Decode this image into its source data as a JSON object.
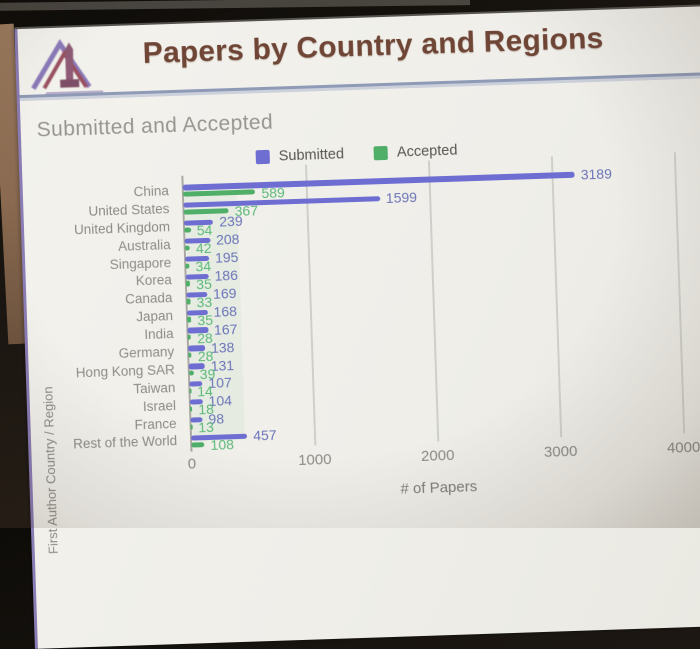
{
  "slide": {
    "title": "Papers by Country and Regions",
    "subtitle": "Submitted and Accepted"
  },
  "colors": {
    "title_text": "#6f4536",
    "header_rule": "#8f9ab6",
    "slide_background": "#efeee9",
    "submitted_bar": "#6e6ed2",
    "accepted_bar": "#4fae68"
  },
  "chart_data": {
    "type": "bar",
    "orientation": "horizontal",
    "title": "Submitted and Accepted",
    "xlabel": "# of Papers",
    "ylabel": "First Author Country / Region",
    "xlim": [
      0,
      4000
    ],
    "xticks": [
      0,
      1000,
      2000,
      3000,
      4000
    ],
    "grid": true,
    "legend_position": "top-center",
    "categories": [
      "China",
      "United States",
      "United Kingdom",
      "Australia",
      "Singapore",
      "Korea",
      "Canada",
      "Japan",
      "India",
      "Germany",
      "Hong Kong SAR",
      "Taiwan",
      "Israel",
      "France",
      "Rest of the World"
    ],
    "series": [
      {
        "name": "Submitted",
        "color": "#6e6ed2",
        "label_color": "#6b74b8",
        "values": [
          3189,
          1599,
          239,
          208,
          195,
          186,
          169,
          168,
          167,
          138,
          131,
          107,
          104,
          98,
          457
        ]
      },
      {
        "name": "Accepted",
        "color": "#4fae68",
        "label_color": "#5cb878",
        "values": [
          589,
          367,
          54,
          42,
          34,
          35,
          33,
          35,
          28,
          28,
          39,
          14,
          18,
          13,
          108
        ]
      }
    ]
  }
}
